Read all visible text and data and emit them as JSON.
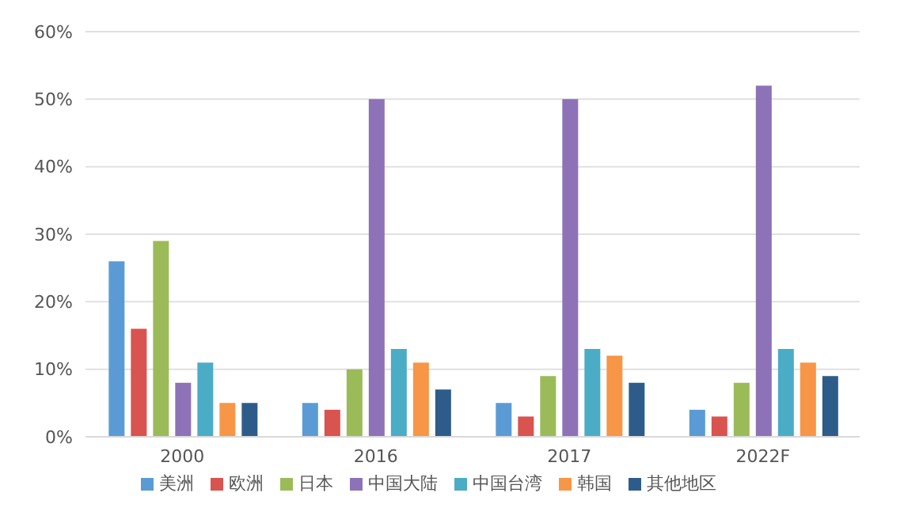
{
  "chart_data": {
    "type": "bar",
    "categories": [
      "2000",
      "2016",
      "2017",
      "2022F"
    ],
    "series": [
      {
        "name": "美洲",
        "color": "#5b9bd5",
        "values": [
          26,
          5,
          5,
          4
        ]
      },
      {
        "name": "欧洲",
        "color": "#d9534f",
        "values": [
          16,
          4,
          3,
          3
        ]
      },
      {
        "name": "日本",
        "color": "#9bbb59",
        "values": [
          29,
          10,
          9,
          8
        ]
      },
      {
        "name": "中国大陆",
        "color": "#8e72b8",
        "values": [
          8,
          50,
          50,
          52
        ]
      },
      {
        "name": "中国台湾",
        "color": "#4bacc6",
        "values": [
          11,
          13,
          13,
          13
        ]
      },
      {
        "name": "韩国",
        "color": "#f79646",
        "values": [
          5,
          11,
          12,
          11
        ]
      },
      {
        "name": "其他地区",
        "color": "#2e5c8a",
        "values": [
          5,
          7,
          8,
          9
        ]
      }
    ],
    "ylim": [
      0,
      60
    ],
    "yticks": [
      {
        "value": 0,
        "label": "0%"
      },
      {
        "value": 10,
        "label": "10%"
      },
      {
        "value": 20,
        "label": "20%"
      },
      {
        "value": 30,
        "label": "30%"
      },
      {
        "value": 40,
        "label": "40%"
      },
      {
        "value": 50,
        "label": "50%"
      },
      {
        "value": 60,
        "label": "60%"
      }
    ],
    "grid": "y",
    "legend": "bottom"
  }
}
